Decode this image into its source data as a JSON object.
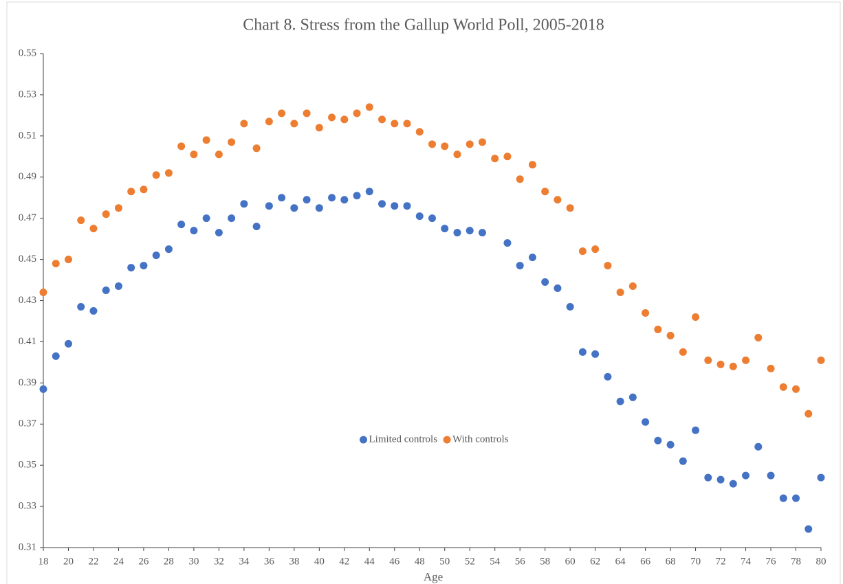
{
  "chart_data": {
    "type": "scatter",
    "title": "Chart 8.  Stress from the Gallup World Poll, 2005-2018",
    "x_label": "Age",
    "x": [
      18,
      19,
      20,
      21,
      22,
      23,
      24,
      25,
      26,
      27,
      28,
      29,
      30,
      31,
      32,
      33,
      34,
      35,
      36,
      37,
      38,
      39,
      40,
      41,
      42,
      43,
      44,
      45,
      46,
      47,
      48,
      49,
      50,
      51,
      52,
      53,
      54,
      55,
      56,
      57,
      58,
      59,
      60,
      61,
      62,
      63,
      64,
      65,
      66,
      67,
      68,
      69,
      70,
      71,
      72,
      73,
      74,
      75,
      76,
      77,
      78,
      79,
      80
    ],
    "series": [
      {
        "name": "Limited controls",
        "color": "#4472c4",
        "values": [
          0.387,
          0.403,
          0.409,
          0.427,
          0.425,
          0.435,
          0.437,
          0.446,
          0.447,
          0.452,
          0.455,
          0.467,
          0.464,
          0.47,
          0.463,
          0.47,
          0.477,
          0.466,
          0.476,
          0.48,
          0.475,
          0.479,
          0.475,
          0.48,
          0.479,
          0.481,
          0.483,
          0.477,
          0.476,
          0.476,
          0.471,
          0.47,
          0.465,
          0.463,
          0.464,
          0.463,
          null,
          0.458,
          0.447,
          0.451,
          0.439,
          0.436,
          0.427,
          0.405,
          0.404,
          0.393,
          0.381,
          0.383,
          0.371,
          0.362,
          0.36,
          0.352,
          0.367,
          0.344,
          0.343,
          0.341,
          0.345,
          0.359,
          0.345,
          0.334,
          0.334,
          0.319,
          0.344
        ]
      },
      {
        "name": "With controls",
        "color": "#ed7d31",
        "values": [
          0.434,
          0.448,
          0.45,
          0.469,
          0.465,
          0.472,
          0.475,
          0.483,
          0.484,
          0.491,
          0.492,
          0.505,
          0.501,
          0.508,
          0.501,
          0.507,
          0.516,
          0.504,
          0.517,
          0.521,
          0.516,
          0.521,
          0.514,
          0.519,
          0.518,
          0.521,
          0.524,
          0.518,
          0.516,
          0.516,
          0.512,
          0.506,
          0.505,
          0.501,
          0.506,
          0.507,
          0.499,
          0.5,
          0.489,
          0.496,
          0.483,
          0.479,
          0.475,
          0.454,
          0.455,
          0.447,
          0.434,
          0.437,
          0.424,
          0.416,
          0.413,
          0.405,
          0.422,
          0.401,
          0.399,
          0.398,
          0.401,
          0.412,
          0.397,
          0.388,
          0.387,
          0.375,
          0.401
        ]
      }
    ],
    "xlim": [
      18,
      80
    ],
    "xticks": [
      18,
      20,
      22,
      24,
      26,
      28,
      30,
      32,
      34,
      36,
      38,
      40,
      42,
      44,
      46,
      48,
      50,
      52,
      54,
      56,
      58,
      60,
      62,
      64,
      66,
      68,
      70,
      72,
      74,
      76,
      78,
      80
    ],
    "ylim": [
      0.31,
      0.55
    ],
    "yticks": [
      0.31,
      0.33,
      0.35,
      0.37,
      0.39,
      0.41,
      0.43,
      0.45,
      0.47,
      0.49,
      0.51,
      0.53,
      0.55
    ],
    "grid": false,
    "legend": "center"
  }
}
